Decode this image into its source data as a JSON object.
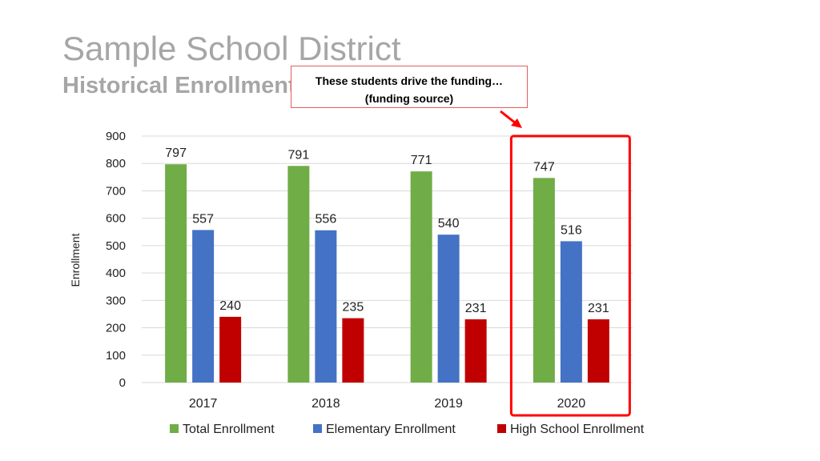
{
  "page": {
    "title": "Sample School District",
    "subtitle": "Historical Enrollment"
  },
  "callout": {
    "line1": "These students drive the funding…",
    "line2": "(funding source)"
  },
  "colors": {
    "total": "#70ad47",
    "elementary": "#4472c4",
    "high_school": "#c00000",
    "highlight": "#ff0000",
    "grid": "#d9d9d9"
  },
  "chart_data": {
    "type": "bar",
    "title": "",
    "xlabel": "",
    "ylabel": "Enrollment",
    "ylim": [
      0,
      900
    ],
    "yticks": [
      0,
      100,
      200,
      300,
      400,
      500,
      600,
      700,
      800,
      900
    ],
    "grid": true,
    "legend": "bottom",
    "categories": [
      "2017",
      "2018",
      "2019",
      "2020"
    ],
    "highlighted_category": "2020",
    "series": [
      {
        "name": "Total Enrollment",
        "values": [
          797,
          791,
          771,
          747
        ]
      },
      {
        "name": "Elementary Enrollment",
        "values": [
          557,
          556,
          540,
          516
        ]
      },
      {
        "name": "High School Enrollment",
        "values": [
          240,
          235,
          231,
          231
        ]
      }
    ]
  }
}
